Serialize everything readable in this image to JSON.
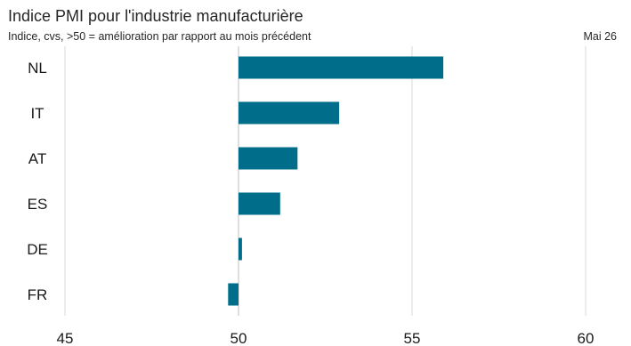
{
  "header": {
    "title": "Indice PMI pour l'industrie manufacturière",
    "subtitle": "Indice, cvs, >50 = amélioration par rapport au mois précédent",
    "date": "Mai 26"
  },
  "colors": {
    "bar": "#006e8a",
    "gridline": "#d9d9d9",
    "axis_line": "#bfbfbf",
    "text": "#1a1a1a"
  },
  "chart_data": {
    "type": "bar",
    "orientation": "horizontal",
    "title": "Indice PMI pour l'industrie manufacturière",
    "subtitle": "Indice, cvs, >50 = amélioration par rapport au mois précédent",
    "annotation": "Mai 26",
    "categories": [
      "NL",
      "IT",
      "AT",
      "ES",
      "DE",
      "FR"
    ],
    "values": [
      55.9,
      52.9,
      51.7,
      51.2,
      50.1,
      49.7
    ],
    "baseline": 50,
    "xlim": [
      45,
      60
    ],
    "xticks": [
      45,
      50,
      55,
      60
    ],
    "xlabel": "",
    "ylabel": "",
    "grid": true,
    "legend": "none"
  }
}
